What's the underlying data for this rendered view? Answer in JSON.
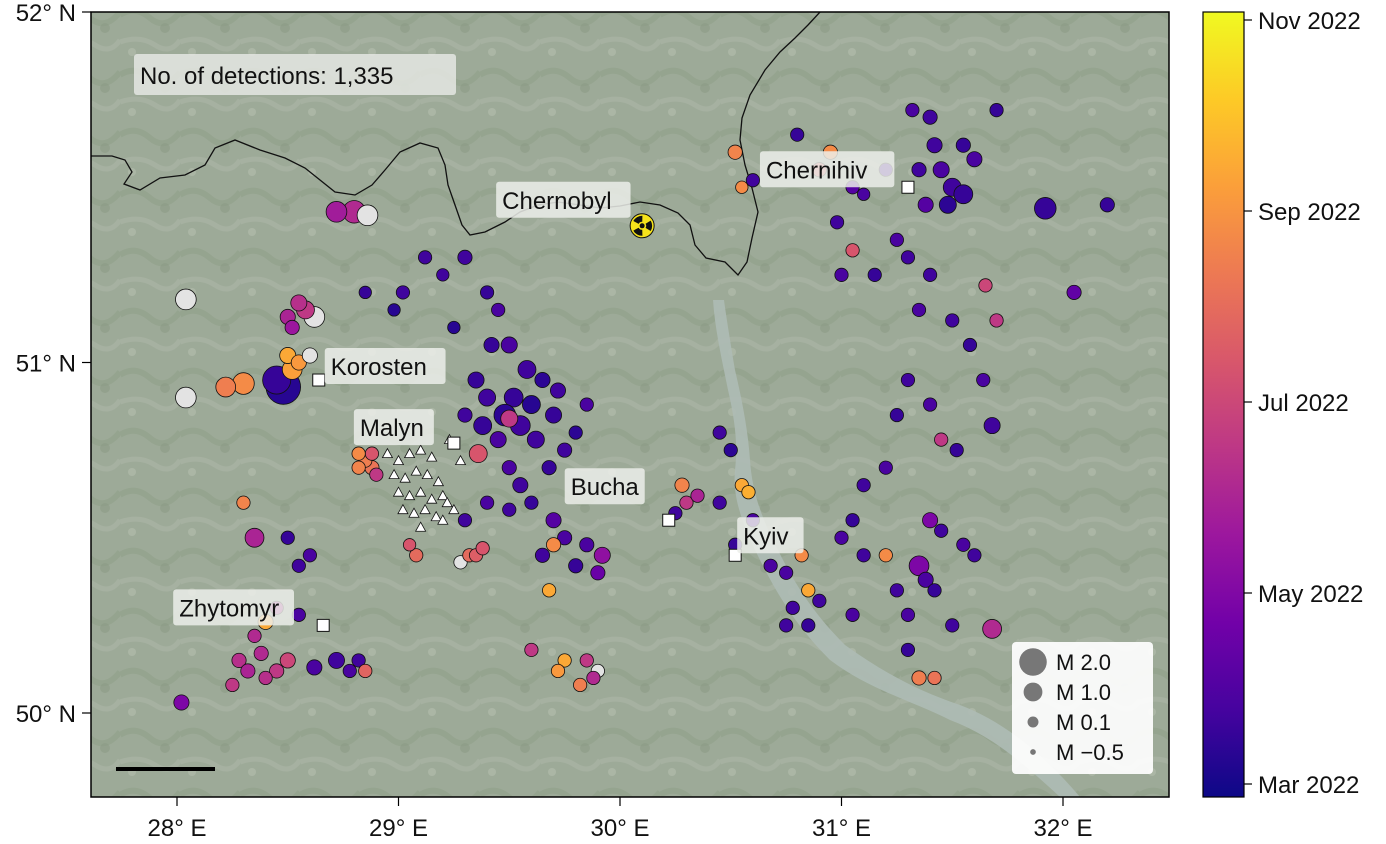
{
  "detections_label": "No. of detections: 1,335",
  "axes": {
    "x_ticks": [
      {
        "value": 28,
        "label": "28° E"
      },
      {
        "value": 29,
        "label": "29° E"
      },
      {
        "value": 30,
        "label": "30° E"
      },
      {
        "value": 31,
        "label": "31° E"
      },
      {
        "value": 32,
        "label": "32° E"
      }
    ],
    "y_ticks": [
      {
        "value": 52,
        "label": "52° N"
      },
      {
        "value": 51,
        "label": "51° N"
      },
      {
        "value": 50,
        "label": "50° N"
      }
    ]
  },
  "colorbar": {
    "ticks": [
      {
        "t": 0.0,
        "label": "Mar 2022"
      },
      {
        "t": 0.2,
        "label": "May 2022"
      },
      {
        "t": 0.4,
        "label": "Jul 2022"
      },
      {
        "t": 0.6,
        "label": "Sep 2022"
      },
      {
        "t": 0.8,
        "label": "Nov 2022"
      }
    ],
    "gradient": [
      "#0d0887",
      "#46039f",
      "#7201a8",
      "#9c179e",
      "#bd3786",
      "#d8576b",
      "#ed7953",
      "#fb9f3a",
      "#fdca26",
      "#f0f921"
    ]
  },
  "places": [
    {
      "name": "Chernobyl",
      "lon": 30.1,
      "lat": 51.39,
      "marker": "radiation-icon"
    },
    {
      "name": "Chernihiv",
      "lon": 31.3,
      "lat": 51.5,
      "marker": "square"
    },
    {
      "name": "Korosten",
      "lon": 28.64,
      "lat": 50.95,
      "marker": "square"
    },
    {
      "name": "Malyn",
      "lon": 29.25,
      "lat": 50.77,
      "marker": "square"
    },
    {
      "name": "Bucha",
      "lon": 30.22,
      "lat": 50.55,
      "marker": "square"
    },
    {
      "name": "Kyiv",
      "lon": 30.52,
      "lat": 50.45,
      "marker": "square"
    },
    {
      "name": "Zhytomyr",
      "lon": 28.66,
      "lat": 50.25,
      "marker": "square"
    }
  ],
  "legend": {
    "items": [
      {
        "label": "M 2.0",
        "magnitude": 2.0
      },
      {
        "label": "M 1.0",
        "magnitude": 1.0
      },
      {
        "label": "M 0.1",
        "magnitude": 0.1
      },
      {
        "label": "M −0.5",
        "magnitude": -0.5
      }
    ]
  },
  "stations": [
    [
      28.95,
      50.74
    ],
    [
      29.0,
      50.72
    ],
    [
      29.05,
      50.74
    ],
    [
      29.1,
      50.75
    ],
    [
      29.15,
      50.73
    ],
    [
      28.98,
      50.68
    ],
    [
      29.03,
      50.67
    ],
    [
      29.08,
      50.69
    ],
    [
      29.13,
      50.68
    ],
    [
      29.18,
      50.66
    ],
    [
      29.0,
      50.63
    ],
    [
      29.05,
      50.62
    ],
    [
      29.1,
      50.63
    ],
    [
      29.15,
      50.61
    ],
    [
      29.2,
      50.62
    ],
    [
      29.02,
      50.58
    ],
    [
      29.07,
      50.57
    ],
    [
      29.12,
      50.58
    ],
    [
      29.17,
      50.56
    ],
    [
      29.22,
      50.6
    ],
    [
      29.1,
      50.53
    ],
    [
      29.2,
      50.55
    ],
    [
      29.25,
      50.58
    ],
    [
      29.23,
      50.78
    ],
    [
      29.28,
      50.72
    ]
  ],
  "events": [
    [
      28.48,
      50.93,
      2.6,
      0.05
    ],
    [
      28.45,
      50.95,
      1.9,
      0.08
    ],
    [
      28.3,
      50.94,
      1.2,
      0.72
    ],
    [
      28.22,
      50.93,
      1.0,
      0.68
    ],
    [
      28.52,
      50.98,
      1.0,
      0.78
    ],
    [
      28.5,
      51.02,
      0.6,
      0.8
    ],
    [
      28.55,
      51.0,
      0.5,
      0.76
    ],
    [
      28.04,
      50.9,
      1.1,
      -1
    ],
    [
      28.04,
      51.18,
      1.1,
      -1
    ],
    [
      28.62,
      51.13,
      1.1,
      -1
    ],
    [
      28.58,
      51.15,
      0.8,
      0.45
    ],
    [
      28.55,
      51.17,
      0.6,
      0.42
    ],
    [
      28.8,
      51.43,
      1.3,
      0.4
    ],
    [
      28.72,
      51.43,
      1.1,
      0.35
    ],
    [
      28.86,
      51.42,
      1.1,
      -1
    ],
    [
      28.5,
      51.13,
      0.5,
      0.38
    ],
    [
      28.52,
      51.1,
      0.4,
      0.33
    ],
    [
      28.6,
      51.02,
      0.5,
      -1
    ],
    [
      28.35,
      50.5,
      0.9,
      0.38
    ],
    [
      28.3,
      50.6,
      0.3,
      0.7
    ],
    [
      29.12,
      51.3,
      0.3,
      0.1
    ],
    [
      29.2,
      51.25,
      0.2,
      0.1
    ],
    [
      29.3,
      51.3,
      0.4,
      0.1
    ],
    [
      29.45,
      51.15,
      0.3,
      0.12
    ],
    [
      29.4,
      51.2,
      0.3,
      0.08
    ],
    [
      29.02,
      51.2,
      0.3,
      0.1
    ],
    [
      28.98,
      51.15,
      0.2,
      0.05
    ],
    [
      28.85,
      51.2,
      0.2,
      0.08
    ],
    [
      29.25,
      51.1,
      0.2,
      0.05
    ],
    [
      29.5,
      51.05,
      0.6,
      0.12
    ],
    [
      29.58,
      50.98,
      0.8,
      0.1
    ],
    [
      29.42,
      51.05,
      0.5,
      0.08
    ],
    [
      29.52,
      50.9,
      0.9,
      0.08
    ],
    [
      29.48,
      50.85,
      1.2,
      0.06
    ],
    [
      29.55,
      50.82,
      1.0,
      0.1
    ],
    [
      29.6,
      50.88,
      0.8,
      0.05
    ],
    [
      29.4,
      50.9,
      0.7,
      0.1
    ],
    [
      29.38,
      50.82,
      0.8,
      0.08
    ],
    [
      29.45,
      50.78,
      0.6,
      0.12
    ],
    [
      29.62,
      50.78,
      0.7,
      0.1
    ],
    [
      29.7,
      50.85,
      0.6,
      0.08
    ],
    [
      29.72,
      50.92,
      0.5,
      0.1
    ],
    [
      29.65,
      50.95,
      0.5,
      0.06
    ],
    [
      29.35,
      50.95,
      0.6,
      0.08
    ],
    [
      29.3,
      50.85,
      0.4,
      0.1
    ],
    [
      29.5,
      50.7,
      0.4,
      0.12
    ],
    [
      29.55,
      50.65,
      0.5,
      0.1
    ],
    [
      29.68,
      50.7,
      0.4,
      0.08
    ],
    [
      29.75,
      50.75,
      0.4,
      0.1
    ],
    [
      29.8,
      50.8,
      0.3,
      0.06
    ],
    [
      29.85,
      50.88,
      0.3,
      0.12
    ],
    [
      29.5,
      50.84,
      0.7,
      0.45
    ],
    [
      29.36,
      50.74,
      0.8,
      0.55
    ],
    [
      29.7,
      50.55,
      0.5,
      0.15
    ],
    [
      29.75,
      50.5,
      0.4,
      0.12
    ],
    [
      29.65,
      50.45,
      0.4,
      0.1
    ],
    [
      29.8,
      50.42,
      0.4,
      0.08
    ],
    [
      29.85,
      50.48,
      0.4,
      0.12
    ],
    [
      29.92,
      50.45,
      0.6,
      0.3
    ],
    [
      29.9,
      50.4,
      0.4,
      0.2
    ],
    [
      29.6,
      50.6,
      0.3,
      0.08
    ],
    [
      29.5,
      50.58,
      0.3,
      0.1
    ],
    [
      29.4,
      50.6,
      0.3,
      0.12
    ],
    [
      29.3,
      50.55,
      0.3,
      0.1
    ],
    [
      29.7,
      50.48,
      0.4,
      0.72
    ],
    [
      30.28,
      50.65,
      0.4,
      0.7
    ],
    [
      30.3,
      50.6,
      0.3,
      0.45
    ],
    [
      30.35,
      50.62,
      0.3,
      0.38
    ],
    [
      30.25,
      50.57,
      0.3,
      0.1
    ],
    [
      30.45,
      50.6,
      0.3,
      0.1
    ],
    [
      30.55,
      50.65,
      0.3,
      0.8
    ],
    [
      30.58,
      50.63,
      0.3,
      0.82
    ],
    [
      30.5,
      50.75,
      0.3,
      0.06
    ],
    [
      30.45,
      50.8,
      0.3,
      0.1
    ],
    [
      30.6,
      50.55,
      0.3,
      0.12
    ],
    [
      30.52,
      50.48,
      0.3,
      0.08
    ],
    [
      30.6,
      51.52,
      0.3,
      0.1
    ],
    [
      30.52,
      51.6,
      0.4,
      0.7
    ],
    [
      30.55,
      51.5,
      0.2,
      0.72
    ],
    [
      30.95,
      51.6,
      0.4,
      0.72
    ],
    [
      30.9,
      51.55,
      0.4,
      0.58
    ],
    [
      31.05,
      51.5,
      0.3,
      0.15
    ],
    [
      31.1,
      51.48,
      0.2,
      0.12
    ],
    [
      30.8,
      51.65,
      0.3,
      0.08
    ],
    [
      31.42,
      51.62,
      0.5,
      0.1
    ],
    [
      31.45,
      51.55,
      0.6,
      0.12
    ],
    [
      31.5,
      51.5,
      0.8,
      0.1
    ],
    [
      31.55,
      51.48,
      0.9,
      0.08
    ],
    [
      31.48,
      51.45,
      0.7,
      0.06
    ],
    [
      31.6,
      51.58,
      0.5,
      0.12
    ],
    [
      31.38,
      51.45,
      0.5,
      0.15
    ],
    [
      31.35,
      51.55,
      0.4,
      0.1
    ],
    [
      31.55,
      51.62,
      0.4,
      0.08
    ],
    [
      31.4,
      51.7,
      0.4,
      0.1
    ],
    [
      31.32,
      51.72,
      0.3,
      0.12
    ],
    [
      31.7,
      51.72,
      0.3,
      0.08
    ],
    [
      31.92,
      51.44,
      1.2,
      0.08
    ],
    [
      32.2,
      51.45,
      0.4,
      0.08
    ],
    [
      32.05,
      51.2,
      0.4,
      0.18
    ],
    [
      31.2,
      51.55,
      0.3,
      0.1
    ],
    [
      31.25,
      51.35,
      0.3,
      0.12
    ],
    [
      31.3,
      51.3,
      0.3,
      0.1
    ],
    [
      31.15,
      51.25,
      0.3,
      0.08
    ],
    [
      31.05,
      51.32,
      0.3,
      0.55
    ],
    [
      31.0,
      51.25,
      0.3,
      0.12
    ],
    [
      30.98,
      51.4,
      0.3,
      0.1
    ],
    [
      31.4,
      51.25,
      0.3,
      0.1
    ],
    [
      31.35,
      51.15,
      0.3,
      0.12
    ],
    [
      31.5,
      51.12,
      0.3,
      0.1
    ],
    [
      31.58,
      51.05,
      0.3,
      0.08
    ],
    [
      31.65,
      51.22,
      0.3,
      0.5
    ],
    [
      31.7,
      51.12,
      0.3,
      0.45
    ],
    [
      31.3,
      50.95,
      0.3,
      0.1
    ],
    [
      31.25,
      50.85,
      0.3,
      0.08
    ],
    [
      31.4,
      50.88,
      0.3,
      0.12
    ],
    [
      31.45,
      50.78,
      0.3,
      0.45
    ],
    [
      31.64,
      50.95,
      0.3,
      0.12
    ],
    [
      31.68,
      50.82,
      0.6,
      0.1
    ],
    [
      31.52,
      50.75,
      0.3,
      0.08
    ],
    [
      31.2,
      50.7,
      0.3,
      0.12
    ],
    [
      31.1,
      50.65,
      0.3,
      0.1
    ],
    [
      31.05,
      50.55,
      0.3,
      0.08
    ],
    [
      31.0,
      50.5,
      0.3,
      0.12
    ],
    [
      31.1,
      50.45,
      0.3,
      0.1
    ],
    [
      31.35,
      50.42,
      1.0,
      0.25
    ],
    [
      31.38,
      50.38,
      0.5,
      0.12
    ],
    [
      31.42,
      50.35,
      0.3,
      0.08
    ],
    [
      31.5,
      50.25,
      0.3,
      0.1
    ],
    [
      31.3,
      50.28,
      0.3,
      0.12
    ],
    [
      31.25,
      50.35,
      0.3,
      0.1
    ],
    [
      31.2,
      50.45,
      0.3,
      0.72
    ],
    [
      31.68,
      50.24,
      0.9,
      0.4
    ],
    [
      31.45,
      50.52,
      0.3,
      0.1
    ],
    [
      31.4,
      50.55,
      0.5,
      0.25
    ],
    [
      31.55,
      50.48,
      0.3,
      0.12
    ],
    [
      31.6,
      50.45,
      0.3,
      0.1
    ],
    [
      31.35,
      50.1,
      0.4,
      0.68
    ],
    [
      31.42,
      50.1,
      0.3,
      0.65
    ],
    [
      31.3,
      50.18,
      0.3,
      0.08
    ],
    [
      30.85,
      50.35,
      0.3,
      0.8
    ],
    [
      30.82,
      50.45,
      0.3,
      0.72
    ],
    [
      30.75,
      50.4,
      0.3,
      0.12
    ],
    [
      30.78,
      50.3,
      0.3,
      0.1
    ],
    [
      30.85,
      50.25,
      0.3,
      0.08
    ],
    [
      30.68,
      50.42,
      0.3,
      0.12
    ],
    [
      30.75,
      50.25,
      0.3,
      0.1
    ],
    [
      30.9,
      50.32,
      0.3,
      0.1
    ],
    [
      31.05,
      50.28,
      0.3,
      0.12
    ],
    [
      28.28,
      50.15,
      0.4,
      0.42
    ],
    [
      28.32,
      50.12,
      0.4,
      0.38
    ],
    [
      28.38,
      50.17,
      0.4,
      0.4
    ],
    [
      28.45,
      50.12,
      0.4,
      0.45
    ],
    [
      28.5,
      50.15,
      0.5,
      0.5
    ],
    [
      28.4,
      50.1,
      0.3,
      0.42
    ],
    [
      28.25,
      50.08,
      0.3,
      0.45
    ],
    [
      28.35,
      50.22,
      0.3,
      0.4
    ],
    [
      28.45,
      50.3,
      0.3,
      0.38
    ],
    [
      28.55,
      50.28,
      0.3,
      0.12
    ],
    [
      28.62,
      50.13,
      0.5,
      0.12
    ],
    [
      28.72,
      50.15,
      0.6,
      0.1
    ],
    [
      28.78,
      50.12,
      0.3,
      0.12
    ],
    [
      28.82,
      50.15,
      0.3,
      0.1
    ],
    [
      28.85,
      50.12,
      0.3,
      0.6
    ],
    [
      28.55,
      50.42,
      0.3,
      0.1
    ],
    [
      28.5,
      50.5,
      0.3,
      0.08
    ],
    [
      28.6,
      50.45,
      0.3,
      0.12
    ],
    [
      28.4,
      50.26,
      0.5,
      0.8
    ],
    [
      28.02,
      50.03,
      0.5,
      0.25
    ],
    [
      28.88,
      50.7,
      0.4,
      0.65
    ],
    [
      28.85,
      50.72,
      0.3,
      0.68
    ],
    [
      28.82,
      50.7,
      0.3,
      0.7
    ],
    [
      28.9,
      50.68,
      0.3,
      0.45
    ],
    [
      28.88,
      50.74,
      0.3,
      0.55
    ],
    [
      28.82,
      50.74,
      0.3,
      0.72
    ],
    [
      29.08,
      50.45,
      0.3,
      0.62
    ],
    [
      29.05,
      50.48,
      0.2,
      0.55
    ],
    [
      29.28,
      50.43,
      0.3,
      -1
    ],
    [
      29.32,
      50.45,
      0.3,
      0.62
    ],
    [
      29.35,
      50.45,
      0.3,
      0.58
    ],
    [
      29.38,
      50.47,
      0.3,
      0.55
    ],
    [
      29.6,
      50.18,
      0.3,
      0.45
    ],
    [
      29.75,
      50.15,
      0.3,
      0.8
    ],
    [
      29.72,
      50.12,
      0.3,
      0.76
    ],
    [
      29.85,
      50.15,
      0.3,
      0.45
    ],
    [
      29.9,
      50.12,
      0.3,
      -1
    ],
    [
      29.88,
      50.1,
      0.3,
      0.4
    ],
    [
      29.82,
      50.08,
      0.3,
      0.68
    ],
    [
      29.68,
      50.35,
      0.3,
      0.8
    ]
  ]
}
